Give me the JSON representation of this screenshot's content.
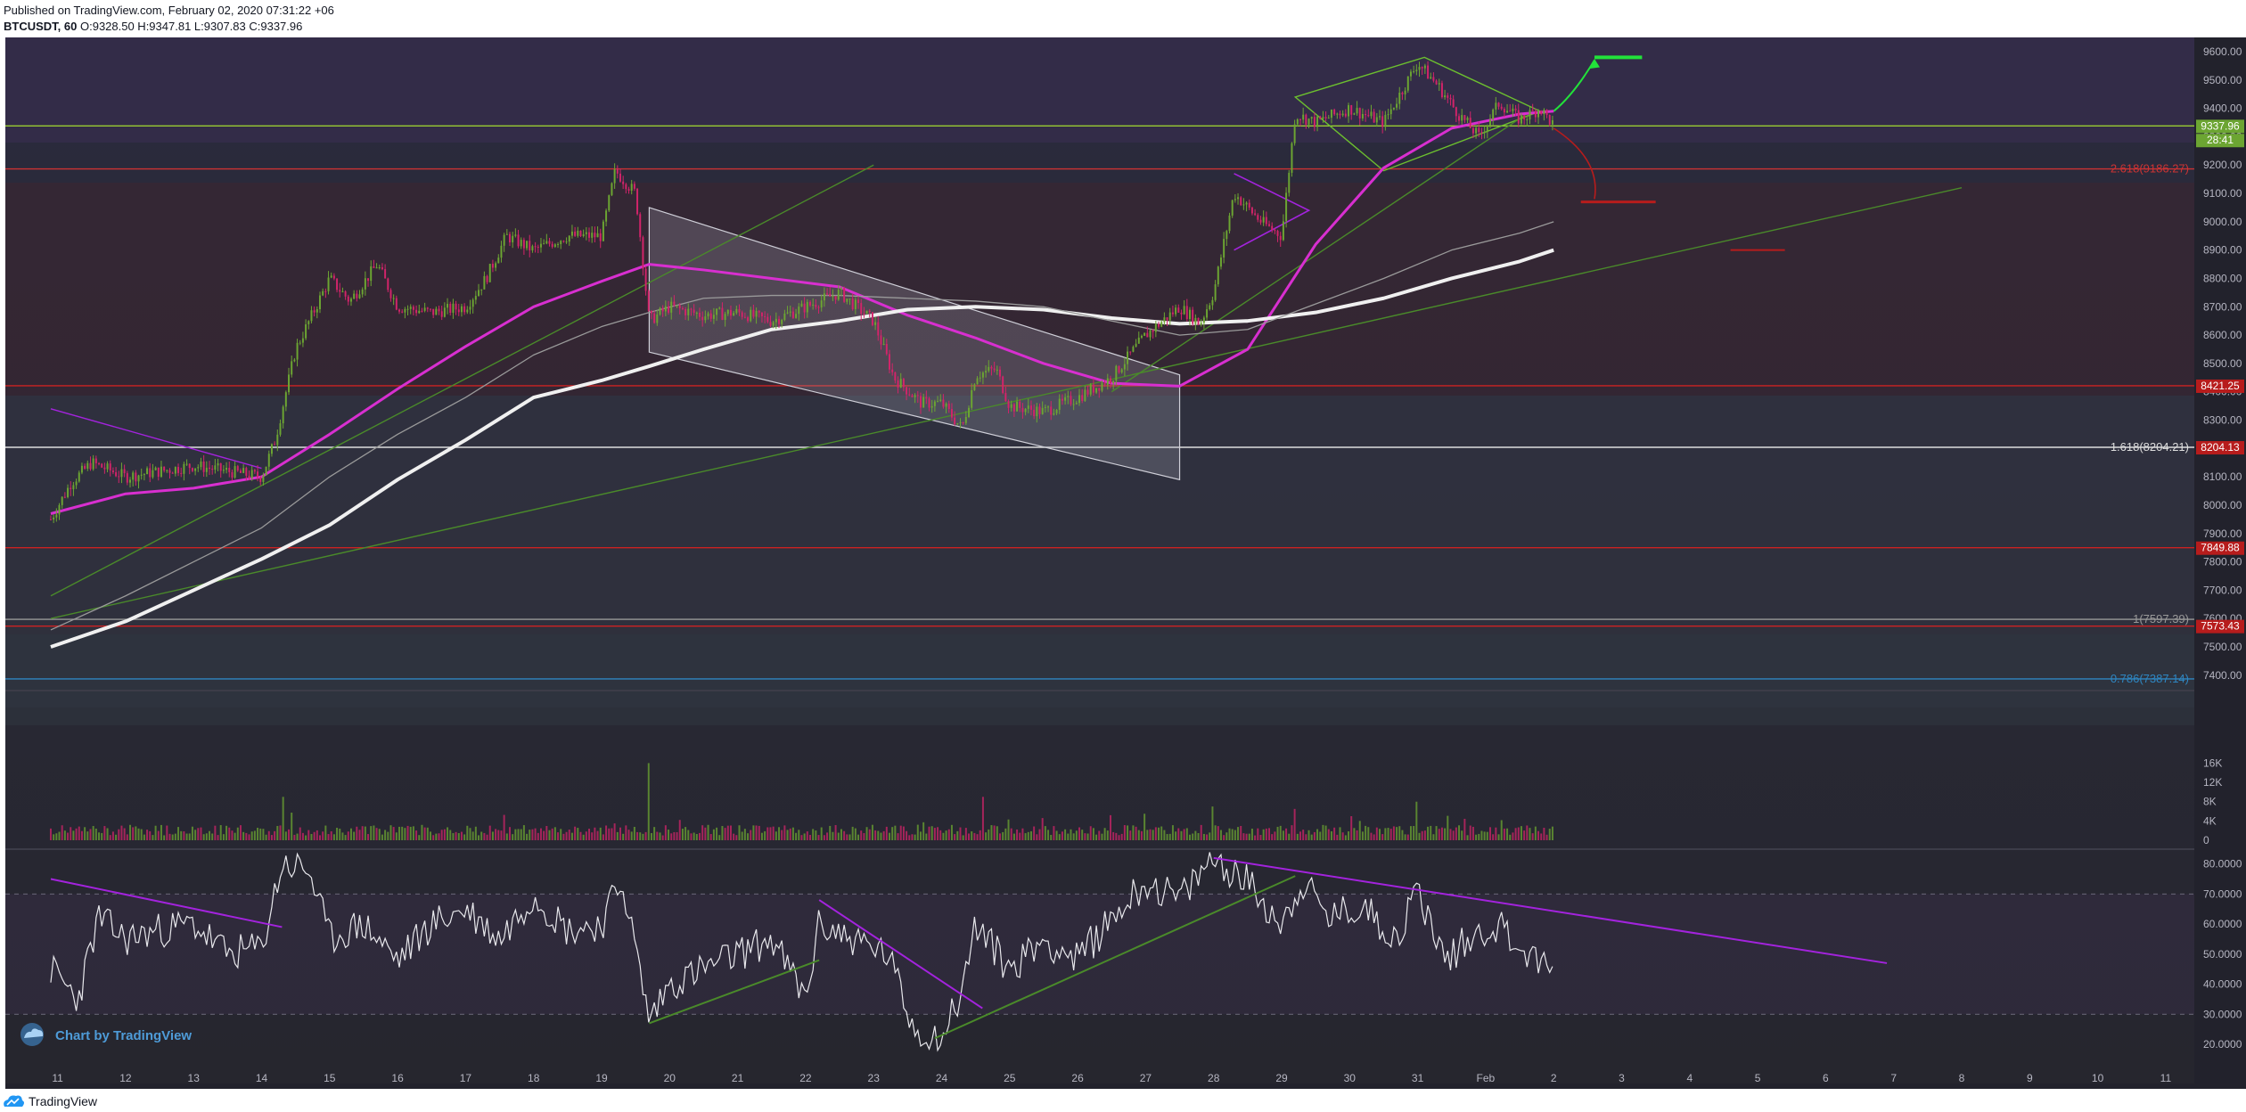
{
  "header": {
    "published": "Published on TradingView.com, February 02, 2020 07:31:22 +06",
    "symbol": "BTCUSDT, 60",
    "ohlc": "O:9328.50 H:9347.81 L:9307.83 C:9337.96"
  },
  "footer": {
    "brand": "TradingView",
    "icon": "tradingview-cloud-icon"
  },
  "watermark": "Chart by TradingView",
  "colors": {
    "background": "#2a2a36",
    "up": "#6ca532",
    "down": "#d2246a",
    "ma": "#d82fd0",
    "ma_slow": "#e6e6e6",
    "trend": "#4a8a2a",
    "fib": "#cc3333"
  },
  "chart_data": [
    {
      "type": "line",
      "symbol": "BTCUSDT",
      "interval": "60",
      "x_labels": [
        "11",
        "12",
        "13",
        "14",
        "15",
        "16",
        "17",
        "18",
        "19",
        "20",
        "21",
        "22",
        "23",
        "24",
        "25",
        "26",
        "27",
        "28",
        "29",
        "30",
        "31",
        "Feb",
        "2",
        "3",
        "4",
        "5",
        "6",
        "7",
        "8",
        "9",
        "10",
        "11"
      ],
      "y_ticks": [
        7400,
        7500,
        7600,
        7700,
        7800,
        7900,
        8000,
        8100,
        8200,
        8300,
        8400,
        8500,
        8600,
        8700,
        8800,
        8900,
        9000,
        9100,
        9200,
        9300,
        9400,
        9500,
        9600
      ],
      "y_tick_labels": [
        "7400.00",
        "7500.00",
        "7600.00",
        "7700.00",
        "7800.00",
        "7900.00",
        "8000.00",
        "8100.00",
        "8200.00",
        "8300.00",
        "8400.00",
        "8500.00",
        "8600.00",
        "8700.00",
        "8800.00",
        "8900.00",
        "9000.00",
        "9100.00",
        "9200.00",
        "9300.00",
        "9400.00",
        "9500.00",
        "9600.00"
      ],
      "ylim": [
        7365,
        9645
      ],
      "grid": false,
      "price_series_approx": [
        [
          10.9,
          7950
        ],
        [
          11.2,
          8080
        ],
        [
          11.5,
          8150
        ],
        [
          12,
          8100
        ],
        [
          12.5,
          8120
        ],
        [
          13,
          8140
        ],
        [
          13.5,
          8120
        ],
        [
          14,
          8100
        ],
        [
          14.2,
          8230
        ],
        [
          14.5,
          8550
        ],
        [
          15,
          8800
        ],
        [
          15.3,
          8720
        ],
        [
          15.7,
          8850
        ],
        [
          16,
          8700
        ],
        [
          16.5,
          8680
        ],
        [
          17,
          8700
        ],
        [
          17.3,
          8800
        ],
        [
          17.6,
          8950
        ],
        [
          18,
          8900
        ],
        [
          18.5,
          8950
        ],
        [
          19,
          8950
        ],
        [
          19.2,
          9180
        ],
        [
          19.5,
          9100
        ],
        [
          19.7,
          8650
        ],
        [
          20,
          8700
        ],
        [
          20.5,
          8670
        ],
        [
          21,
          8680
        ],
        [
          21.5,
          8650
        ],
        [
          22,
          8700
        ],
        [
          22.5,
          8750
        ],
        [
          23,
          8650
        ],
        [
          23.3,
          8450
        ],
        [
          23.7,
          8360
        ],
        [
          24,
          8360
        ],
        [
          24.3,
          8270
        ],
        [
          24.5,
          8460
        ],
        [
          24.8,
          8480
        ],
        [
          25,
          8350
        ],
        [
          25.5,
          8330
        ],
        [
          26,
          8380
        ],
        [
          26.5,
          8450
        ],
        [
          27,
          8600
        ],
        [
          27.5,
          8700
        ],
        [
          27.8,
          8640
        ],
        [
          28,
          8750
        ],
        [
          28.3,
          9100
        ],
        [
          28.7,
          9000
        ],
        [
          29,
          8950
        ],
        [
          29.2,
          9380
        ],
        [
          29.5,
          9350
        ],
        [
          30,
          9400
        ],
        [
          30.5,
          9350
        ],
        [
          31,
          9560
        ],
        [
          31.3,
          9480
        ],
        [
          31.6,
          9380
        ],
        [
          31.9,
          9300
        ],
        [
          32.2,
          9420
        ],
        [
          32.5,
          9360
        ],
        [
          32.8,
          9400
        ],
        [
          33.0,
          9340
        ]
      ],
      "series": [
        {
          "name": "",
          "color": "#d82fd0",
          "values_approx": [
            [
              10.9,
              7970
            ],
            [
              12,
              8040
            ],
            [
              13,
              8060
            ],
            [
              14,
              8100
            ],
            [
              15,
              8250
            ],
            [
              16,
              8410
            ],
            [
              17,
              8560
            ],
            [
              18,
              8700
            ],
            [
              19,
              8790
            ],
            [
              19.7,
              8850
            ],
            [
              20.5,
              8830
            ],
            [
              21.5,
              8800
            ],
            [
              22.5,
              8770
            ],
            [
              23.5,
              8670
            ],
            [
              24.5,
              8590
            ],
            [
              25.5,
              8500
            ],
            [
              26.5,
              8430
            ],
            [
              27.5,
              8420
            ],
            [
              28.5,
              8550
            ],
            [
              29.5,
              8920
            ],
            [
              30.5,
              9190
            ],
            [
              31.5,
              9330
            ],
            [
              32.5,
              9380
            ],
            [
              33.0,
              9390
            ]
          ]
        },
        {
          "name": "",
          "color": "#f0f0f0",
          "values_approx": [
            [
              10.9,
              7500
            ],
            [
              12,
              7590
            ],
            [
              13,
              7700
            ],
            [
              14,
              7810
            ],
            [
              15,
              7930
            ],
            [
              16,
              8090
            ],
            [
              17,
              8230
            ],
            [
              18,
              8380
            ],
            [
              19,
              8440
            ],
            [
              19.7,
              8490
            ],
            [
              20.5,
              8550
            ],
            [
              21.5,
              8620
            ],
            [
              22.5,
              8650
            ],
            [
              23.5,
              8690
            ],
            [
              24.5,
              8700
            ],
            [
              25.5,
              8690
            ],
            [
              26.5,
              8660
            ],
            [
              27.5,
              8640
            ],
            [
              28.5,
              8650
            ],
            [
              29.5,
              8680
            ],
            [
              30.5,
              8730
            ],
            [
              31.5,
              8800
            ],
            [
              32.5,
              8860
            ],
            [
              33.0,
              8900
            ]
          ]
        },
        {
          "name": "",
          "color": "#9a9a9a",
          "values_approx": [
            [
              10.9,
              7560
            ],
            [
              12,
              7680
            ],
            [
              13,
              7800
            ],
            [
              14,
              7920
            ],
            [
              15,
              8100
            ],
            [
              16,
              8250
            ],
            [
              17,
              8380
            ],
            [
              18,
              8530
            ],
            [
              19,
              8630
            ],
            [
              19.7,
              8680
            ],
            [
              20.5,
              8730
            ],
            [
              21.5,
              8740
            ],
            [
              22.5,
              8740
            ],
            [
              23.5,
              8730
            ],
            [
              24.5,
              8720
            ],
            [
              25.5,
              8700
            ],
            [
              26.5,
              8650
            ],
            [
              27.5,
              8600
            ],
            [
              28.5,
              8620
            ],
            [
              29.5,
              8710
            ],
            [
              30.5,
              8800
            ],
            [
              31.5,
              8900
            ],
            [
              32.5,
              8960
            ],
            [
              33.0,
              9000
            ]
          ]
        }
      ],
      "price_labels": [
        {
          "text": "9337.96",
          "value": 9337.96,
          "bg": "#6ca532"
        },
        {
          "text": "28:41",
          "value": 9288,
          "bg": "#6ca532"
        },
        {
          "text": "8421.25",
          "value": 8421.25,
          "bg": "#b71c1c"
        },
        {
          "text": "8204.13",
          "value": 8204.13,
          "bg": "#b71c1c"
        },
        {
          "text": "7849.88",
          "value": 7849.88,
          "bg": "#b71c1c"
        },
        {
          "text": "7573.43",
          "value": 7573.43,
          "bg": "#b71c1c"
        }
      ],
      "horizontal_levels": [
        {
          "value": 9337.96,
          "color": "#9acd32",
          "label": ""
        },
        {
          "value": 9186.27,
          "color": "#cc3333",
          "label": "2.618(9186.27)"
        },
        {
          "value": 8421.25,
          "color": "#cc2222",
          "label": ""
        },
        {
          "value": 8204.21,
          "color": "#dddddd",
          "label": "1.618(8204.21)"
        },
        {
          "value": 7849.88,
          "color": "#cc2222",
          "label": ""
        },
        {
          "value": 7597.39,
          "color": "#999999",
          "label": "1(7597.39)"
        },
        {
          "value": 7573.43,
          "color": "#cc2222",
          "label": ""
        },
        {
          "value": 7387.14,
          "color": "#2e86c1",
          "label": "0.786(7387.14)"
        }
      ],
      "annotations": [
        "descending channel 19.7–27.5",
        "rising wedge / triangle 29–32.8",
        "ascending trend line 10.9–39",
        "projected up arrow (green)",
        "projected down arrow (red)"
      ]
    },
    {
      "type": "bar",
      "name": "",
      "y_ticks": [
        0,
        4000,
        8000,
        12000,
        16000
      ],
      "y_tick_labels": [
        "0",
        "4K",
        "8K",
        "12K",
        "16K"
      ],
      "ylim": [
        0,
        16000
      ],
      "x_range_days": [
        10.9,
        33.0
      ],
      "values_note": "approximate hourly volume bars, mostly 1K–3K with spikes",
      "spikes": [
        [
          14.3,
          9000
        ],
        [
          19.7,
          16000
        ],
        [
          24.6,
          5000
        ],
        [
          28.0,
          7000
        ],
        [
          29.2,
          6500
        ],
        [
          31.0,
          8000
        ]
      ]
    },
    {
      "type": "line",
      "name": "",
      "y_ticks": [
        20,
        30,
        40,
        50,
        60,
        70,
        80
      ],
      "y_tick_labels": [
        "20.0000",
        "30.0000",
        "40.0000",
        "50.0000",
        "60.0000",
        "70.0000",
        "80.0000"
      ],
      "ylim": [
        16,
        84
      ],
      "bands": [
        30,
        70
      ],
      "values_approx": [
        [
          10.9,
          45
        ],
        [
          11.3,
          35
        ],
        [
          11.6,
          62
        ],
        [
          12,
          55
        ],
        [
          12.5,
          58
        ],
        [
          13,
          60
        ],
        [
          13.5,
          50
        ],
        [
          14,
          52
        ],
        [
          14.3,
          80
        ],
        [
          14.7,
          78
        ],
        [
          15,
          55
        ],
        [
          15.5,
          60
        ],
        [
          16,
          48
        ],
        [
          16.5,
          60
        ],
        [
          17,
          65
        ],
        [
          17.5,
          55
        ],
        [
          18,
          70
        ],
        [
          18.5,
          58
        ],
        [
          19,
          60
        ],
        [
          19.3,
          75
        ],
        [
          19.7,
          28
        ],
        [
          20,
          40
        ],
        [
          20.5,
          45
        ],
        [
          21,
          50
        ],
        [
          21.5,
          55
        ],
        [
          22,
          35
        ],
        [
          22.2,
          60
        ],
        [
          22.7,
          55
        ],
        [
          23.2,
          50
        ],
        [
          23.6,
          25
        ],
        [
          24.0,
          22
        ],
        [
          24.3,
          38
        ],
        [
          24.5,
          60
        ],
        [
          25,
          45
        ],
        [
          25.5,
          55
        ],
        [
          26,
          48
        ],
        [
          26.5,
          62
        ],
        [
          27,
          74
        ],
        [
          27.5,
          68
        ],
        [
          28,
          82
        ],
        [
          28.5,
          74
        ],
        [
          29,
          60
        ],
        [
          29.3,
          74
        ],
        [
          29.7,
          62
        ],
        [
          30.2,
          66
        ],
        [
          30.7,
          55
        ],
        [
          31,
          72
        ],
        [
          31.4,
          48
        ],
        [
          31.8,
          56
        ],
        [
          32.2,
          60
        ],
        [
          32.6,
          50
        ],
        [
          33.0,
          44
        ]
      ],
      "trend_lines": [
        {
          "color": "#a323dd",
          "from": [
            10.9,
            75
          ],
          "to": [
            14.3,
            59
          ]
        },
        {
          "color": "#a323dd",
          "from": [
            22.2,
            68
          ],
          "to": [
            24.6,
            32
          ]
        },
        {
          "color": "#a323dd",
          "from": [
            28.0,
            82
          ],
          "to": [
            37.9,
            47
          ]
        },
        {
          "color": "#4a8a2a",
          "from": [
            19.7,
            27
          ],
          "to": [
            22.2,
            48
          ]
        },
        {
          "color": "#4a8a2a",
          "from": [
            23.9,
            22
          ],
          "to": [
            29.2,
            76
          ]
        }
      ]
    }
  ]
}
